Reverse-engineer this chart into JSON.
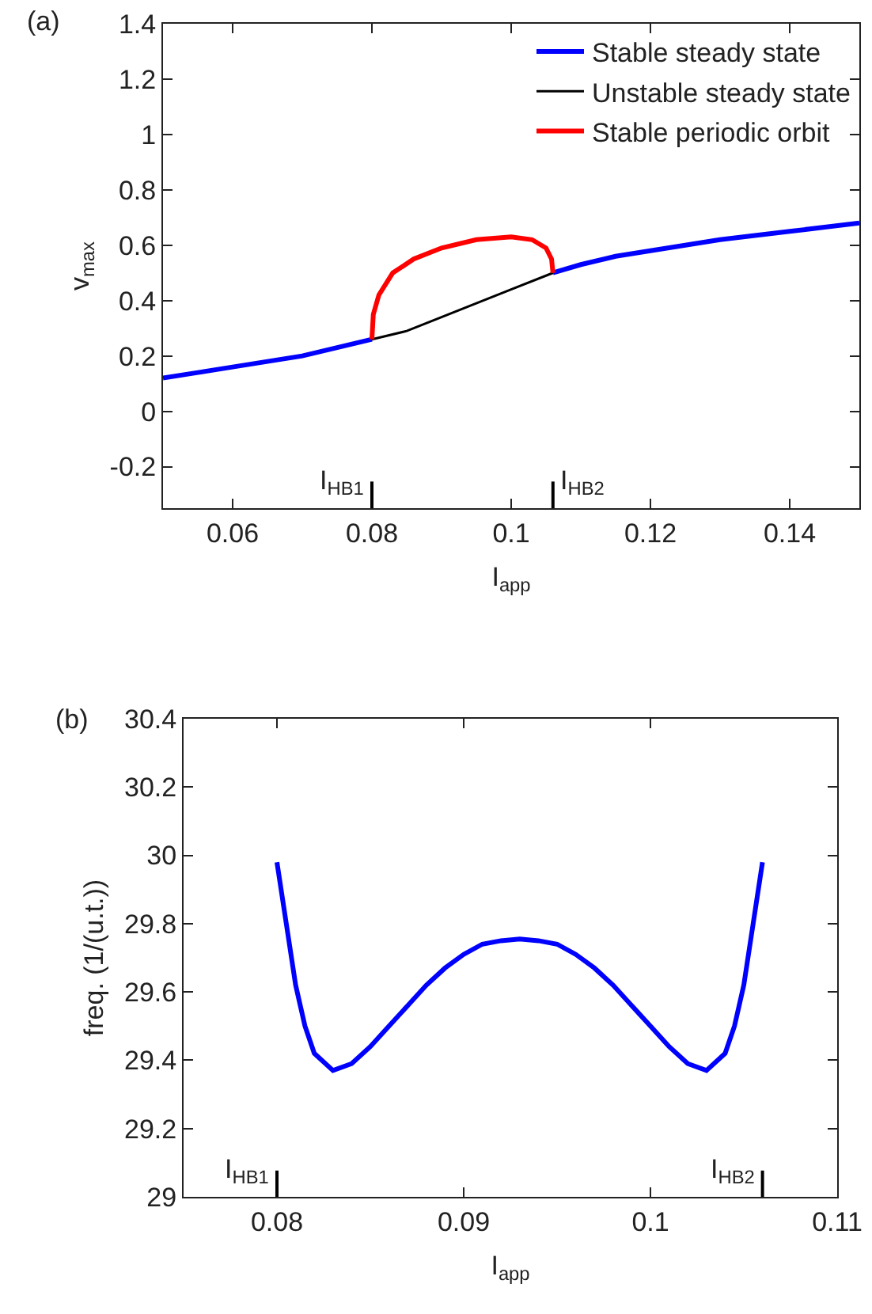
{
  "chart_data": [
    {
      "type": "line",
      "title": "(a)",
      "xlabel": "I$_{app}$",
      "ylabel": "v$_{max}$",
      "xlim": [
        0.05,
        0.15
      ],
      "xticks": [
        0.06,
        0.08,
        0.1,
        0.12,
        0.14
      ],
      "ylim": [
        -0.35,
        1.4
      ],
      "yticks": [
        -0.2,
        0,
        0.2,
        0.4,
        0.6,
        0.8,
        1,
        1.2,
        1.4
      ],
      "grid": false,
      "legend": "top right",
      "marker": "none",
      "line_style": "solid",
      "series": [
        {
          "name": "Stable steady state",
          "color": "#0000ff",
          "x": [
            0.05,
            0.055,
            0.06,
            0.065,
            0.07,
            0.075,
            0.08,
            0.093,
            0.106,
            0.11,
            0.115,
            0.12,
            0.125,
            0.13,
            0.135,
            0.14,
            0.145,
            0.15
          ],
          "values": [
            0.12,
            0.14,
            0.16,
            0.18,
            0.2,
            0.23,
            0.26,
            null,
            0.5,
            0.53,
            0.56,
            0.58,
            0.6,
            0.62,
            0.635,
            0.65,
            0.665,
            0.68
          ]
        },
        {
          "name": "Unstable steady state",
          "color": "#000000",
          "x": [
            0.08,
            0.085,
            0.09,
            0.095,
            0.1,
            0.106
          ],
          "values": [
            0.26,
            0.29,
            0.34,
            0.39,
            0.44,
            0.5
          ]
        },
        {
          "name": "Stable periodic orbit",
          "color": "#ff0000",
          "x": [
            0.08,
            0.0802,
            0.081,
            0.083,
            0.086,
            0.09,
            0.095,
            0.1,
            0.103,
            0.105,
            0.1058,
            0.106
          ],
          "values": [
            0.26,
            0.35,
            0.42,
            0.5,
            0.55,
            0.59,
            0.62,
            0.63,
            0.62,
            0.59,
            0.55,
            0.5
          ]
        }
      ],
      "ref_lines": [
        {
          "axis": "x",
          "value": 0.08,
          "label": "I$_{HB1}$",
          "color": "#000000"
        },
        {
          "axis": "x",
          "value": 0.106,
          "label": "I$_{HB2}$",
          "color": "#000000"
        }
      ]
    },
    {
      "type": "line",
      "title": "(b)",
      "xlabel": "I$_{app}$",
      "ylabel": "freq. (1/(u.t.))",
      "xlim": [
        0.075,
        0.11
      ],
      "xticks": [
        0.08,
        0.09,
        0.1,
        0.11
      ],
      "ylim": [
        29,
        30.4
      ],
      "yticks": [
        29,
        29.2,
        29.4,
        29.6,
        29.8,
        30,
        30.2,
        30.4
      ],
      "grid": false,
      "legend": false,
      "marker": "none",
      "line_style": "solid",
      "series": [
        {
          "color": "#0000ff",
          "x": [
            0.08,
            0.0805,
            0.081,
            0.0815,
            0.082,
            0.083,
            0.084,
            0.085,
            0.086,
            0.087,
            0.088,
            0.089,
            0.09,
            0.091,
            0.092,
            0.093,
            0.094,
            0.095,
            0.096,
            0.097,
            0.098,
            0.099,
            0.1,
            0.101,
            0.102,
            0.103,
            0.104,
            0.1045,
            0.105,
            0.1055,
            0.106
          ],
          "values": [
            29.98,
            29.8,
            29.62,
            29.5,
            29.42,
            29.37,
            29.39,
            29.44,
            29.5,
            29.56,
            29.62,
            29.67,
            29.71,
            29.74,
            29.75,
            29.755,
            29.75,
            29.74,
            29.71,
            29.67,
            29.62,
            29.56,
            29.5,
            29.44,
            29.39,
            29.37,
            29.42,
            29.5,
            29.62,
            29.8,
            29.98
          ]
        }
      ],
      "ref_lines": [
        {
          "axis": "x",
          "value": 0.08,
          "label": "I$_{HB1}$",
          "color": "#000000"
        },
        {
          "axis": "x",
          "value": 0.106,
          "label": "I$_{HB2}$",
          "color": "#000000"
        }
      ]
    }
  ]
}
